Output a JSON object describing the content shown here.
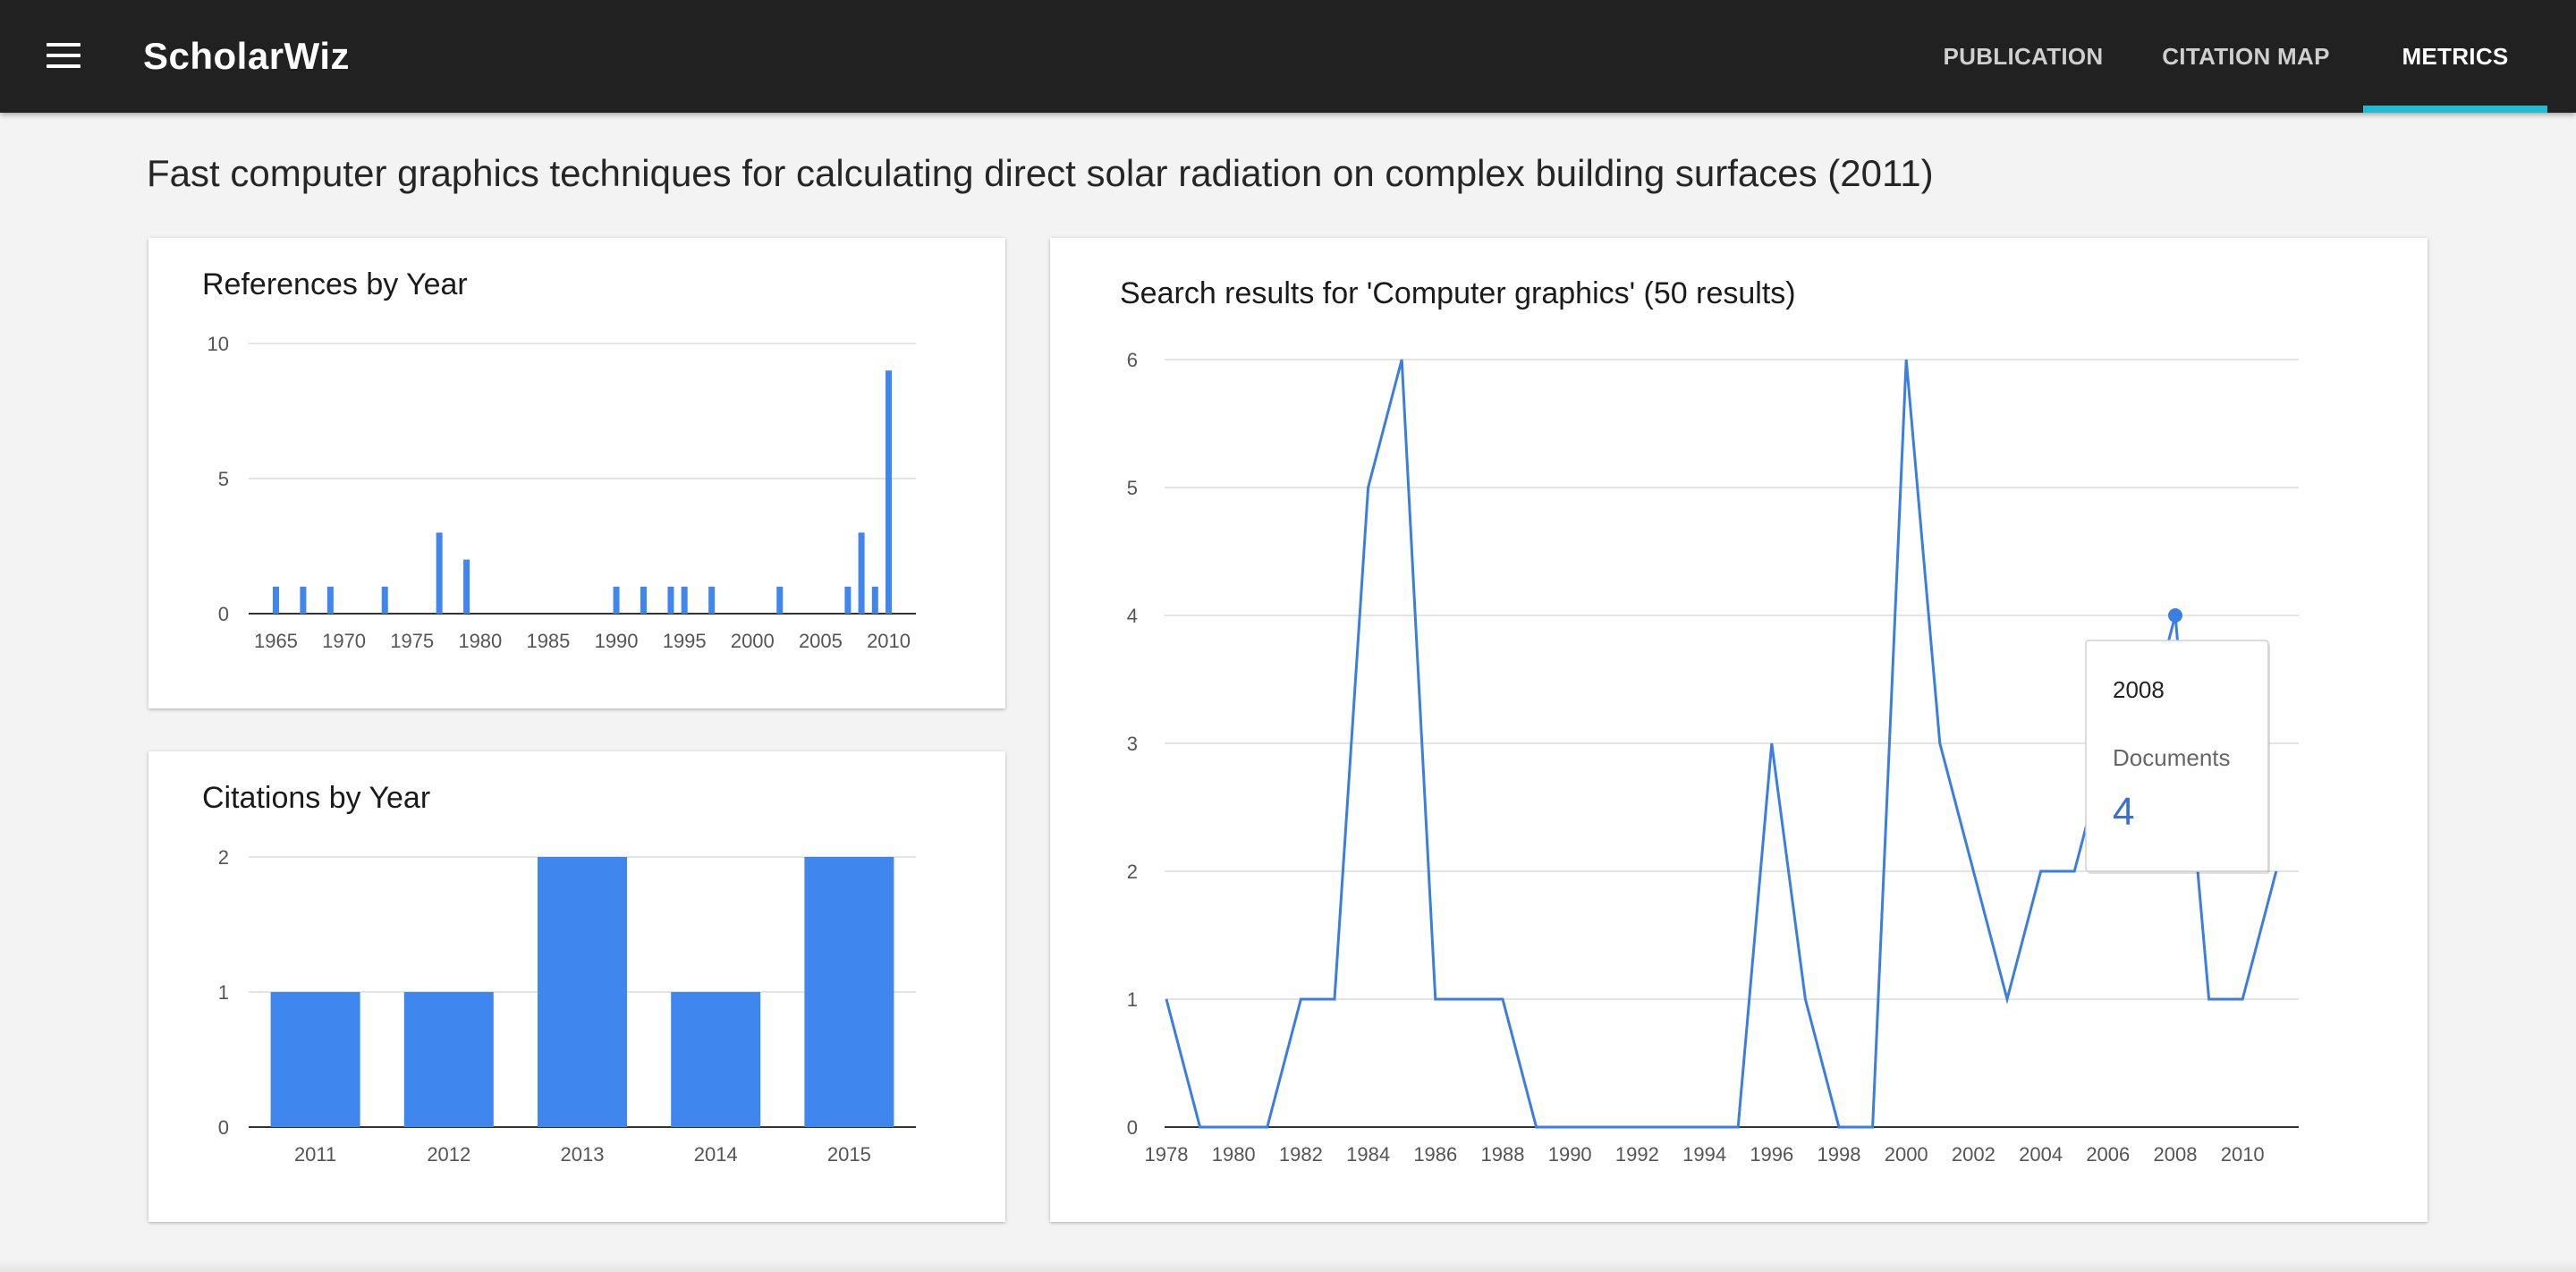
{
  "app": {
    "title": "ScholarWiz",
    "menu_icon": "hamburger-menu-icon"
  },
  "nav": {
    "tabs": [
      "PUBLICATION",
      "CITATION MAP",
      "METRICS"
    ],
    "active": "METRICS"
  },
  "colors": {
    "topbar": "#212121",
    "accent": "#1fbcd3",
    "series": "#3f86ef",
    "line": "#3a7ee0"
  },
  "page": {
    "title": "Fast computer graphics techniques for calculating direct solar radiation on complex building surfaces (2011)"
  },
  "cards": {
    "references": {
      "title": "References by Year"
    },
    "citations": {
      "title": "Citations by Year"
    },
    "search": {
      "title": "Search results for 'Computer graphics' (50 results)"
    }
  },
  "tooltip": {
    "year": "2008",
    "label": "Documents",
    "value": "4"
  },
  "chart_data": [
    {
      "type": "bar",
      "title": "References by Year",
      "xlim": [
        1963,
        2012
      ],
      "ylim": [
        0,
        10
      ],
      "yticks": [
        0,
        5,
        10
      ],
      "xticks": [
        1965,
        1970,
        1975,
        1980,
        1985,
        1990,
        1995,
        2000,
        2005,
        2010
      ],
      "x": [
        1965,
        1967,
        1969,
        1973,
        1977,
        1979,
        1990,
        1992,
        1994,
        1995,
        1997,
        2002,
        2007,
        2008,
        2009,
        2010
      ],
      "values": [
        1,
        1,
        1,
        1,
        3,
        2,
        1,
        1,
        1,
        1,
        1,
        1,
        1,
        3,
        1,
        9
      ],
      "grid": true
    },
    {
      "type": "bar",
      "title": "Citations by Year",
      "categories": [
        "2011",
        "2012",
        "2013",
        "2014",
        "2015"
      ],
      "values": [
        1,
        1,
        2,
        1,
        2
      ],
      "ylim": [
        0,
        2
      ],
      "yticks": [
        0,
        1,
        2
      ],
      "grid": true
    },
    {
      "type": "line",
      "title": "Search results for 'Computer graphics' (50 results)",
      "x": [
        1978,
        1979,
        1980,
        1981,
        1982,
        1983,
        1984,
        1985,
        1986,
        1987,
        1988,
        1989,
        1990,
        1991,
        1992,
        1993,
        1994,
        1995,
        1996,
        1997,
        1998,
        1999,
        2000,
        2001,
        2002,
        2003,
        2004,
        2005,
        2006,
        2007,
        2008,
        2009,
        2010,
        2011
      ],
      "y": [
        1,
        0,
        0,
        0,
        1,
        1,
        5,
        6,
        1,
        1,
        1,
        0,
        0,
        0,
        0,
        0,
        0,
        0,
        3,
        1,
        0,
        0,
        6,
        3,
        2,
        1,
        2,
        2,
        3,
        3,
        4,
        1,
        1,
        2
      ],
      "xlim": [
        1978,
        2012
      ],
      "ylim": [
        0,
        6
      ],
      "yticks": [
        0,
        1,
        2,
        3,
        4,
        5,
        6
      ],
      "xticks": [
        1978,
        1980,
        1982,
        1984,
        1986,
        1988,
        1990,
        1992,
        1994,
        1996,
        1998,
        2000,
        2002,
        2004,
        2006,
        2008,
        2010
      ],
      "highlight": {
        "x": 2008,
        "y": 4
      },
      "grid": true
    }
  ]
}
